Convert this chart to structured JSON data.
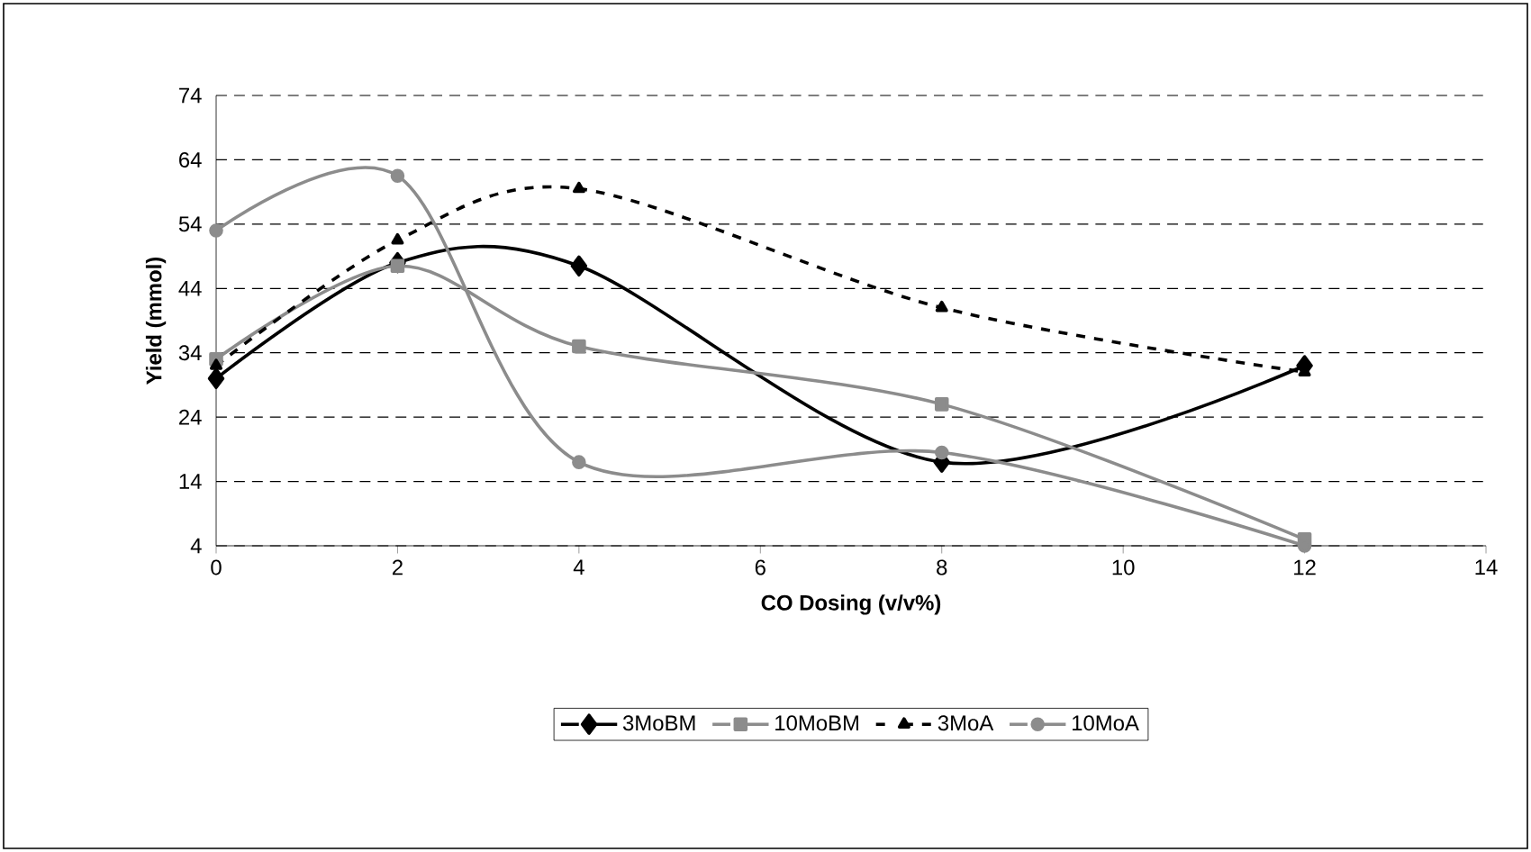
{
  "chart_data": {
    "type": "line",
    "xlabel": "CO Dosing (v/v%)",
    "ylabel": "Yield (mmol)",
    "x": [
      0,
      2,
      4,
      8,
      12
    ],
    "series": [
      {
        "name": "3MoBM",
        "color": "#000000",
        "values": [
          30,
          48,
          47.5,
          17,
          32
        ],
        "marker": "diamond",
        "line_style": "solid"
      },
      {
        "name": "10MoBM",
        "color": "#8c8c8c",
        "values": [
          33,
          47.5,
          35,
          26,
          5
        ],
        "marker": "square",
        "line_style": "solid"
      },
      {
        "name": "3MoA",
        "color": "#000000",
        "values": [
          32,
          51.5,
          59.5,
          41,
          31
        ],
        "marker": "triangle",
        "line_style": "dashed"
      },
      {
        "name": "10MoA",
        "color": "#8c8c8c",
        "values": [
          53,
          61.5,
          17,
          18.5,
          4
        ],
        "marker": "circle",
        "line_style": "solid"
      }
    ],
    "xlim": [
      0,
      14
    ],
    "xticks": [
      0,
      2,
      4,
      6,
      8,
      10,
      12,
      14
    ],
    "ylim": [
      4,
      74
    ],
    "yticks": [
      4,
      14,
      24,
      34,
      44,
      54,
      64,
      74
    ],
    "grid": "y",
    "legend": "bottom"
  }
}
